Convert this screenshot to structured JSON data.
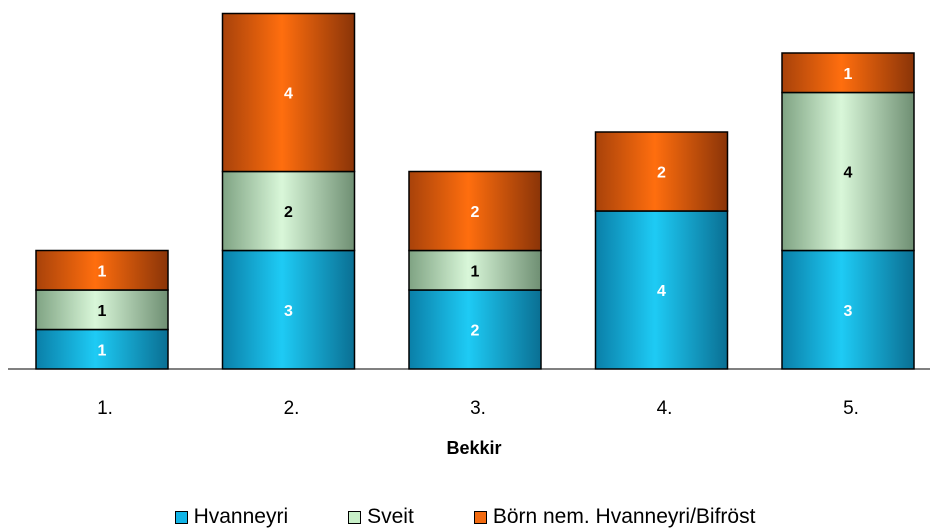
{
  "chart_data": {
    "type": "bar",
    "stacked": true,
    "xlabel": "Bekkir",
    "categories": [
      "1.",
      "2.",
      "3.",
      "4.",
      "5."
    ],
    "series": [
      {
        "name": "Hvanneyri",
        "values": [
          1,
          3,
          2,
          4,
          3
        ],
        "color": "#11b4e6"
      },
      {
        "name": "Sveit",
        "values": [
          1,
          2,
          1,
          0,
          4
        ],
        "color": "#c8f0c8"
      },
      {
        "name": "Börn nem. Hvanneyri/Bifröst",
        "values": [
          1,
          4,
          2,
          2,
          1
        ],
        "color": "#f26a10"
      }
    ],
    "ylim": [
      0,
      9
    ],
    "grid": false,
    "data_labels": true,
    "legend_position": "bottom"
  }
}
